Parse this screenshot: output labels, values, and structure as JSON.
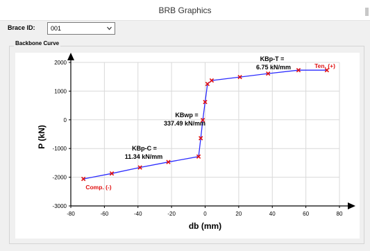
{
  "window": {
    "title": "BRB Graphics"
  },
  "brace": {
    "label": "Brace ID:",
    "value": "001"
  },
  "group": {
    "title": "Backbone Curve"
  },
  "annotations": {
    "kbp_t": [
      "KBp-T =",
      "6.75 kN/mm"
    ],
    "kbwp": [
      "KBwp =",
      "337.49 kN/mm"
    ],
    "kbp_c": [
      "KBp-C =",
      "11.34 kN/mm"
    ],
    "ten": "Ten. (+)",
    "comp": "Comp. (-)"
  },
  "colors": {
    "line": "#2b2bff",
    "marker": "#e01010",
    "label_red": "#e01010"
  },
  "chart_data": {
    "type": "line",
    "xlabel": "db (mm)",
    "ylabel": "P (kN)",
    "xlim": [
      -80,
      80
    ],
    "ylim": [
      -3000,
      2000
    ],
    "xticks": [
      -80,
      -60,
      -40,
      -20,
      0,
      20,
      40,
      60,
      80
    ],
    "yticks": [
      -3000,
      -2000,
      -1000,
      0,
      1000,
      2000
    ],
    "grid": true,
    "series": [
      {
        "x": [
          -72.5,
          -55.6,
          -38.8,
          -21.9,
          -3.9,
          -2.6,
          -1.4,
          0,
          1.4,
          3.9,
          20.7,
          37.5,
          55.6,
          72.5
        ],
        "y": [
          -2060,
          -1870,
          -1660,
          -1470,
          -1280,
          -640,
          -10,
          620,
          1250,
          1370,
          1490,
          1610,
          1730,
          1730
        ]
      }
    ]
  }
}
